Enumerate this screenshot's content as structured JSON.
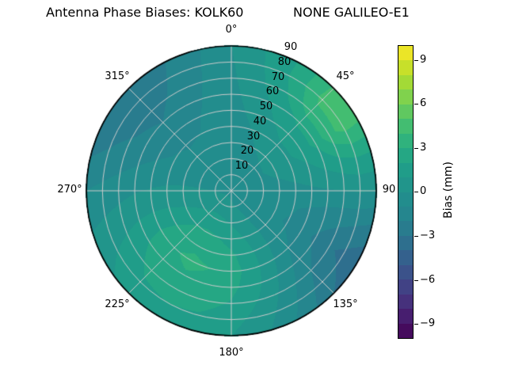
{
  "title": {
    "left": "Antenna Phase Biases: KOLK60",
    "right": "NONE GALILEO-E1"
  },
  "polar": {
    "angle_labels": [
      "0°",
      "45°",
      "90",
      "135°",
      "180°",
      "225°",
      "270°",
      "315°"
    ],
    "radius_labels": [
      "10",
      "20",
      "30",
      "40",
      "50",
      "60",
      "70",
      "80",
      "90"
    ],
    "grid_color": "#cccccc",
    "edge_color": "#000000"
  },
  "colorbar": {
    "label": "Bias (mm)",
    "ticks": [
      "9",
      "6",
      "3",
      "0",
      "−3",
      "−6",
      "−9"
    ],
    "tick_values": [
      9,
      6,
      3,
      0,
      -3,
      -6,
      -9
    ],
    "min": -10,
    "max": 10,
    "band_step": 1,
    "colormap": "viridis"
  },
  "chart_data": {
    "type": "polar_contour",
    "title": "Antenna Phase Biases: KOLK60        NONE GALILEO-E1",
    "colorbar_label": "Bias (mm)",
    "colormap": "viridis",
    "levels": {
      "min": -10,
      "max": 10,
      "step": 1
    },
    "angular_ticks_deg": [
      0,
      45,
      90,
      135,
      180,
      225,
      270,
      315
    ],
    "radial_ticks": [
      10,
      20,
      30,
      40,
      50,
      60,
      70,
      80,
      90
    ],
    "azimuth_deg": [
      0,
      15,
      30,
      45,
      60,
      75,
      90,
      105,
      120,
      135,
      150,
      165,
      180,
      195,
      210,
      225,
      240,
      255,
      270,
      285,
      300,
      315,
      330,
      345
    ],
    "zenith_deg": [
      0,
      10,
      20,
      30,
      40,
      50,
      60,
      70,
      80,
      90
    ],
    "bias_mm": [
      [
        -0.3,
        -0.3,
        -0.3,
        -0.3,
        -0.3,
        -0.3,
        -0.3,
        -0.3,
        -0.3,
        -0.3,
        -0.3,
        -0.3,
        -0.3,
        -0.3,
        -0.3,
        -0.3,
        -0.3,
        -0.3,
        -0.3,
        -0.3,
        -0.3,
        -0.3,
        -0.3,
        -0.3
      ],
      [
        -0.4,
        -0.4,
        -0.3,
        -0.2,
        -0.2,
        -0.3,
        -0.4,
        -0.5,
        -0.5,
        -0.4,
        -0.2,
        0.0,
        0.2,
        0.4,
        0.5,
        0.5,
        0.4,
        0.2,
        0.0,
        -0.2,
        -0.4,
        -0.5,
        -0.5,
        -0.5
      ],
      [
        -0.5,
        -0.5,
        -0.4,
        -0.2,
        -0.1,
        -0.2,
        -0.4,
        -0.6,
        -0.6,
        -0.4,
        0.0,
        0.5,
        0.9,
        1.2,
        1.3,
        1.2,
        0.9,
        0.5,
        0.1,
        -0.2,
        -0.5,
        -0.6,
        -0.6,
        -0.6
      ],
      [
        -0.5,
        -0.3,
        0.0,
        0.3,
        0.3,
        0.0,
        -0.4,
        -0.8,
        -0.8,
        -0.5,
        0.2,
        1.0,
        1.6,
        2.0,
        2.2,
        2.0,
        1.5,
        0.8,
        0.2,
        -0.3,
        -0.6,
        -0.8,
        -0.8,
        -0.7
      ],
      [
        -0.5,
        -0.1,
        0.4,
        0.8,
        0.8,
        0.3,
        -0.3,
        -0.9,
        -1.1,
        -0.7,
        0.3,
        1.4,
        2.2,
        2.6,
        2.8,
        2.6,
        1.9,
        1.0,
        0.2,
        -0.4,
        -0.9,
        -1.1,
        -1.0,
        -0.8
      ],
      [
        -0.4,
        0.2,
        0.9,
        1.5,
        1.5,
        0.7,
        -0.2,
        -1.2,
        -1.5,
        -1.0,
        0.2,
        1.5,
        2.5,
        3.0,
        3.2,
        2.9,
        2.1,
        1.0,
        0.1,
        -0.7,
        -1.3,
        -1.5,
        -1.2,
        -0.8
      ],
      [
        -0.3,
        0.5,
        1.4,
        2.2,
        2.3,
        1.2,
        -0.1,
        -1.5,
        -2.2,
        -1.5,
        -0.1,
        1.3,
        2.3,
        2.8,
        2.9,
        2.7,
        1.9,
        0.8,
        -0.1,
        -1.0,
        -1.7,
        -2.0,
        -1.5,
        -0.9
      ],
      [
        -0.2,
        0.8,
        2.0,
        3.6,
        3.7,
        1.7,
        0.0,
        -1.7,
        -2.8,
        -2.0,
        -0.5,
        0.9,
        1.9,
        2.4,
        2.5,
        2.3,
        1.5,
        0.5,
        -0.4,
        -1.4,
        -2.1,
        -2.4,
        -1.8,
        -1.0
      ],
      [
        -0.1,
        1.0,
        2.3,
        4.3,
        4.4,
        2.0,
        0.1,
        -1.9,
        -3.3,
        -2.5,
        -0.9,
        0.5,
        1.4,
        1.9,
        2.0,
        1.8,
        1.1,
        0.2,
        -0.7,
        -1.8,
        -2.5,
        -2.8,
        -2.0,
        -1.1
      ],
      [
        0.0,
        1.1,
        2.2,
        4.1,
        4.2,
        1.9,
        0.0,
        -2.2,
        -3.8,
        -3.0,
        -1.3,
        0.1,
        1.0,
        1.5,
        1.6,
        1.4,
        0.7,
        -0.1,
        -1.0,
        -2.1,
        -2.8,
        -3.0,
        -2.2,
        -1.2
      ]
    ]
  }
}
